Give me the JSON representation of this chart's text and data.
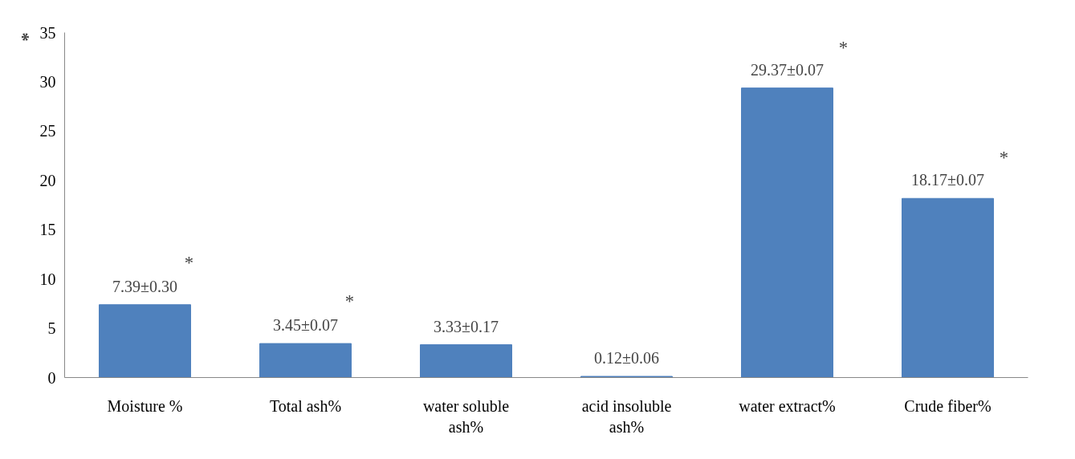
{
  "chart_data": {
    "type": "bar",
    "categories": [
      "Moisture %",
      "Total ash%",
      "water soluble ash%",
      "acid insoluble ash%",
      "water extract%",
      "Crude fiber%"
    ],
    "values": [
      7.39,
      3.45,
      3.33,
      0.12,
      29.37,
      18.17
    ],
    "value_labels": [
      "7.39±0.30",
      "3.45±0.07",
      "3.33±0.17",
      "0.12±0.06",
      "29.37±0.07",
      "18.17±0.07"
    ],
    "color": "#4f81bd",
    "ylim": [
      0,
      35
    ],
    "yticks": [
      0,
      5,
      10,
      15,
      20,
      25,
      30,
      35
    ],
    "grid": false,
    "annotations": [
      "*",
      "*",
      "*",
      "*",
      "*"
    ]
  }
}
